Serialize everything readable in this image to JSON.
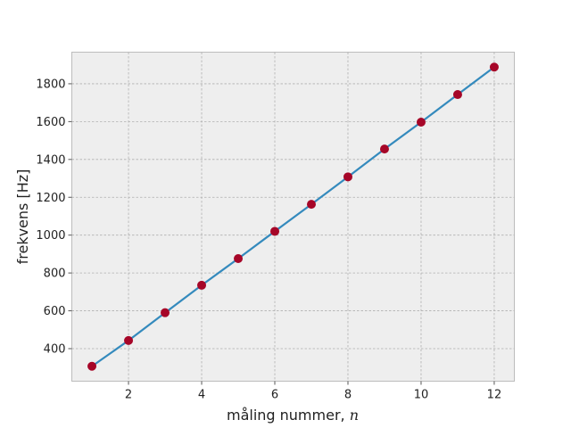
{
  "chart_data": {
    "type": "line",
    "title": "",
    "xlabel": "måling nummer, ",
    "xlabel_var": "n",
    "ylabel": "frekvens [Hz]",
    "x": [
      1,
      2,
      3,
      4,
      5,
      6,
      7,
      8,
      9,
      10,
      11,
      12
    ],
    "series": [
      {
        "values": [
          307,
          443,
          590,
          735,
          876,
          1020,
          1163,
          1308,
          1455,
          1597,
          1743,
          1888
        ],
        "line_color": "#348abd",
        "marker_color": "#a60628"
      }
    ],
    "xlim": [
      0.45,
      12.55
    ],
    "ylim": [
      228,
      1967
    ],
    "xticks": [
      2,
      4,
      6,
      8,
      10,
      12
    ],
    "yticks": [
      400,
      600,
      800,
      1000,
      1200,
      1400,
      1600,
      1800
    ],
    "grid": true,
    "legend": "none",
    "colors": {
      "background": "#eeeeee",
      "frame": "#bcbcbc",
      "grid": "#b0b0b0"
    }
  }
}
